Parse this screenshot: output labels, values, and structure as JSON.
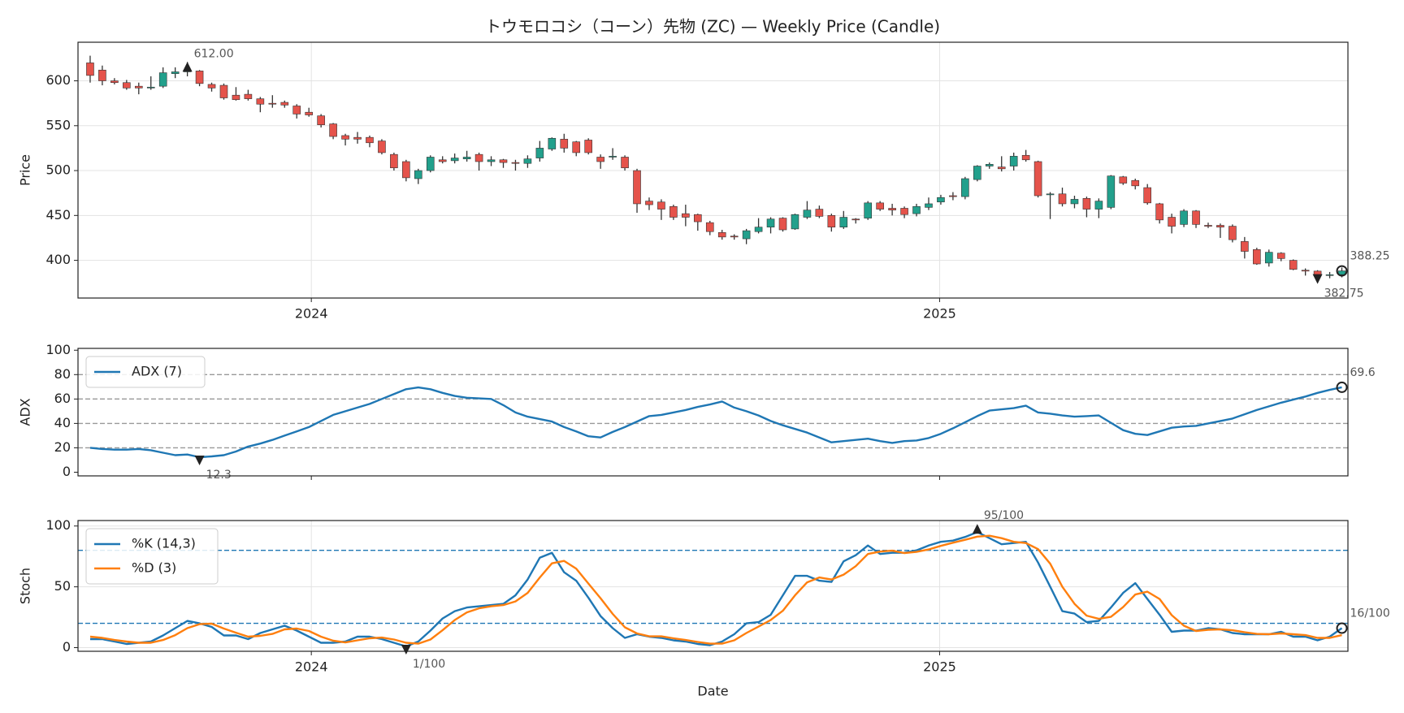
{
  "chart_data": [
    {
      "type": "candlestick",
      "title": "トウモロコシ（コーン）先物 (ZC) — Weekly Price (Candle)",
      "ylabel": "Price",
      "xlim": [
        -1,
        103.5
      ],
      "xticks": [
        {
          "value": 18.2,
          "label": "2024"
        },
        {
          "value": 69.9,
          "label": "2025"
        }
      ],
      "ylim": [
        358,
        643
      ],
      "yticks": [
        400,
        450,
        500,
        550,
        600
      ],
      "grid": true,
      "up_color": "#22a08c",
      "down_color": "#e5534b",
      "wick_color": "#333333",
      "open": [
        620,
        612,
        600,
        598,
        594,
        592,
        594,
        608,
        610,
        611,
        596,
        595,
        584,
        585,
        580,
        575,
        576,
        572,
        565,
        561,
        552,
        539,
        537,
        537,
        533,
        518,
        510,
        491,
        500,
        512,
        511,
        513,
        518,
        510,
        512,
        509,
        508,
        514,
        524,
        535,
        532,
        534,
        515,
        515,
        515,
        500,
        466,
        465,
        460,
        452,
        451,
        442,
        431,
        427,
        424,
        432,
        437,
        447,
        435,
        448,
        457,
        450,
        437,
        446,
        447,
        464,
        458,
        458,
        452,
        459,
        465,
        472,
        471,
        490,
        505,
        504,
        505,
        517,
        510,
        473,
        474,
        463,
        469,
        457,
        459,
        493,
        489,
        481,
        463,
        448,
        440,
        455,
        439,
        439,
        438,
        421,
        412,
        397,
        408,
        400,
        389,
        388,
        384,
        384
      ],
      "high": [
        628,
        617,
        603,
        601,
        598,
        605,
        615,
        615,
        621,
        612,
        598,
        597,
        593,
        590,
        582,
        584,
        578,
        574,
        570,
        563,
        553,
        541,
        543,
        539,
        535,
        520,
        512,
        502,
        517,
        516,
        519,
        522,
        520,
        516,
        513,
        512,
        517,
        533,
        537,
        541,
        533,
        536,
        518,
        525,
        517,
        502,
        470,
        468,
        462,
        462,
        452,
        444,
        434,
        429,
        435,
        447,
        448,
        448,
        452,
        466,
        461,
        452,
        455,
        447,
        466,
        466,
        463,
        460,
        463,
        470,
        473,
        476,
        493,
        506,
        509,
        516,
        520,
        523,
        511,
        476,
        481,
        472,
        471,
        469,
        495,
        494,
        491,
        485,
        464,
        452,
        457,
        456,
        442,
        441,
        440,
        426,
        414,
        412,
        409,
        401,
        391,
        389,
        387,
        392
      ],
      "low": [
        598,
        595,
        596,
        590,
        585,
        590,
        592,
        603,
        605,
        594,
        588,
        579,
        578,
        578,
        565,
        570,
        570,
        558,
        560,
        548,
        535,
        528,
        530,
        526,
        518,
        500,
        488,
        485,
        498,
        508,
        508,
        510,
        500,
        505,
        503,
        500,
        503,
        510,
        522,
        520,
        516,
        518,
        502,
        512,
        500,
        453,
        456,
        445,
        445,
        438,
        433,
        428,
        423,
        423,
        418,
        430,
        430,
        432,
        434,
        446,
        447,
        432,
        435,
        441,
        445,
        455,
        450,
        447,
        449,
        456,
        462,
        467,
        468,
        488,
        502,
        499,
        500,
        510,
        470,
        446,
        460,
        458,
        448,
        447,
        457,
        484,
        479,
        462,
        441,
        430,
        437,
        436,
        436,
        425,
        420,
        402,
        395,
        393,
        399,
        389,
        383,
        381,
        380,
        381
      ],
      "close": [
        606,
        600,
        598,
        592,
        592,
        593,
        609,
        610,
        612,
        597,
        592,
        581,
        579,
        580,
        574,
        574,
        573,
        563,
        562,
        551,
        538,
        535,
        535,
        531,
        520,
        503,
        492,
        500,
        515,
        510,
        514,
        515,
        510,
        512,
        509,
        508,
        513,
        525,
        536,
        525,
        520,
        520,
        510,
        516,
        503,
        463,
        462,
        457,
        448,
        448,
        443,
        432,
        426,
        426,
        433,
        437,
        446,
        434,
        451,
        456,
        449,
        437,
        448,
        445,
        464,
        457,
        456,
        451,
        460,
        463,
        470,
        471,
        491,
        505,
        507,
        502,
        516,
        512,
        472,
        474,
        463,
        468,
        457,
        466,
        494,
        486,
        483,
        464,
        445,
        438,
        455,
        440,
        438,
        437,
        423,
        410,
        396,
        409,
        402,
        390,
        388,
        382.75,
        384,
        388.25
      ],
      "close_labels": [
        null,
        null,
        null,
        null,
        null,
        null,
        null,
        null,
        "612.00",
        null,
        null,
        null,
        null,
        null,
        null,
        null,
        null,
        null,
        null,
        null,
        null,
        null,
        null,
        null,
        null,
        null,
        null,
        null,
        null,
        null,
        null,
        null,
        null,
        null,
        null,
        null,
        null,
        null,
        null,
        null,
        null,
        null,
        null,
        null,
        null,
        null,
        null,
        null,
        null,
        null,
        null,
        null,
        null,
        null,
        null,
        null,
        null,
        null,
        null,
        null,
        null,
        null,
        null,
        null,
        null,
        null,
        null,
        null,
        null,
        null,
        null,
        null,
        null,
        null,
        null,
        null,
        null,
        null,
        null,
        null,
        null,
        null,
        null,
        null,
        null,
        null,
        null,
        null,
        null,
        null,
        null,
        null,
        null,
        null,
        null,
        null,
        null,
        null,
        null,
        null,
        null,
        "382.75",
        null,
        "388.25"
      ]
    },
    {
      "type": "line",
      "ylabel": "ADX",
      "xlim": [
        -1,
        103.5
      ],
      "xticks": [
        18.2,
        69.9
      ],
      "ylim": [
        -3,
        101.5
      ],
      "yticks": [
        0,
        20,
        40,
        60,
        80,
        100
      ],
      "grid": false,
      "levels": [
        20,
        40,
        60,
        80
      ],
      "level_color": "#999999",
      "legend": "upper left",
      "series": [
        {
          "name": "ADX (7)",
          "color": "#1f77b4",
          "values": [
            20,
            19,
            18.5,
            18.5,
            19,
            18,
            16,
            14,
            14.5,
            12.3,
            13,
            14,
            17,
            21,
            23.5,
            26.5,
            30,
            33.5,
            37,
            42,
            47,
            50,
            53,
            56,
            60,
            64,
            68,
            69.5,
            68,
            65,
            62.5,
            61,
            60.5,
            60,
            55,
            49,
            45.5,
            43.5,
            41.5,
            37,
            33.5,
            29.5,
            28.5,
            33,
            37,
            41.5,
            46,
            47,
            49,
            51,
            53.5,
            55.5,
            58,
            53,
            50,
            46.5,
            42,
            38.5,
            35.5,
            32.5,
            28.5,
            24.5,
            25.5,
            26.5,
            27.5,
            25.5,
            24,
            25.5,
            26,
            28,
            31.5,
            36,
            41,
            46,
            50.5,
            51.5,
            52.5,
            54.5,
            49,
            48,
            46.5,
            45.5,
            46,
            46.5,
            40.5,
            34.5,
            31.5,
            30.5,
            33.5,
            36.5,
            37.5,
            38,
            40,
            42,
            44,
            47.5,
            51,
            54,
            57,
            59.5,
            62,
            65,
            67.5,
            69.6
          ],
          "value_labels": [
            null,
            null,
            null,
            null,
            null,
            null,
            null,
            null,
            null,
            "12.3",
            null,
            null,
            null,
            null,
            null,
            null,
            null,
            null,
            null,
            null,
            null,
            null,
            null,
            null,
            null,
            null,
            null,
            null,
            null,
            null,
            null,
            null,
            null,
            null,
            null,
            null,
            null,
            null,
            null,
            null,
            null,
            null,
            null,
            null,
            null,
            null,
            null,
            null,
            null,
            null,
            null,
            null,
            null,
            null,
            null,
            null,
            null,
            null,
            null,
            null,
            null,
            null,
            null,
            null,
            null,
            null,
            null,
            null,
            null,
            null,
            null,
            null,
            null,
            null,
            null,
            null,
            null,
            null,
            null,
            null,
            null,
            null,
            null,
            null,
            null,
            null,
            null,
            null,
            null,
            null,
            null,
            null,
            null,
            null,
            null,
            null,
            null,
            null,
            null,
            null,
            null,
            null,
            null,
            "69.6"
          ]
        }
      ]
    },
    {
      "type": "line",
      "ylabel": "Stoch",
      "xlabel": "Date",
      "xlim": [
        -1,
        103.5
      ],
      "xticks": [
        {
          "value": 18.2,
          "label": "2024"
        },
        {
          "value": 69.9,
          "label": "2025"
        }
      ],
      "ylim": [
        -3,
        104.5
      ],
      "yticks": [
        0,
        50,
        100
      ],
      "grid": true,
      "levels": [
        20,
        80
      ],
      "level_color": "#1f77b4",
      "legend": "upper left",
      "series": [
        {
          "name": "%K (14,3)",
          "color": "#1f77b4",
          "values": [
            7,
            7,
            5,
            3,
            4,
            5,
            10,
            16,
            22,
            20,
            17,
            10,
            10,
            7,
            12,
            15,
            18,
            14,
            9,
            4,
            4,
            5,
            9,
            9,
            7,
            4,
            1,
            5,
            14,
            24,
            30,
            33,
            34,
            35,
            36,
            43,
            56,
            74,
            78,
            62,
            55,
            41,
            26,
            16,
            8,
            11,
            9,
            8,
            6,
            5,
            3,
            2,
            5,
            11,
            20,
            21,
            27,
            43,
            59,
            59,
            55,
            54,
            71,
            76,
            84,
            77,
            78,
            78,
            80,
            84,
            87,
            88,
            91,
            95,
            90,
            85,
            86,
            87,
            70,
            50,
            30,
            28,
            21,
            22,
            33,
            45,
            53,
            40,
            27,
            13,
            14,
            14,
            16,
            15,
            12,
            11,
            11,
            11,
            13,
            9,
            9,
            6,
            9,
            16
          ],
          "value_labels": [
            null,
            null,
            null,
            null,
            null,
            null,
            null,
            null,
            null,
            null,
            null,
            null,
            null,
            null,
            null,
            null,
            null,
            null,
            null,
            null,
            null,
            null,
            null,
            null,
            null,
            null,
            "1/100",
            null,
            null,
            null,
            null,
            null,
            null,
            null,
            null,
            null,
            null,
            null,
            null,
            null,
            null,
            null,
            null,
            null,
            null,
            null,
            null,
            null,
            null,
            null,
            null,
            null,
            null,
            null,
            null,
            null,
            null,
            null,
            null,
            null,
            null,
            null,
            null,
            null,
            null,
            null,
            null,
            null,
            null,
            null,
            null,
            null,
            null,
            "95/100",
            null,
            null,
            null,
            null,
            null,
            null,
            null,
            null,
            null,
            null,
            null,
            null,
            null,
            null,
            null,
            null,
            null,
            null,
            null,
            null,
            null,
            null,
            null,
            null,
            null,
            null,
            null,
            null,
            null,
            "16/100"
          ]
        },
        {
          "name": "%D (3)",
          "color": "#ff7f0e",
          "values": [
            9,
            8,
            6.3,
            5,
            4,
            4,
            6.3,
            10.3,
            16,
            19.3,
            19.7,
            15.7,
            12.3,
            9,
            9.7,
            11.3,
            15,
            15.7,
            13.7,
            9,
            5.7,
            4.3,
            6,
            7.7,
            8.3,
            6.7,
            4,
            3.3,
            6.7,
            14.3,
            22.7,
            29,
            32.3,
            34,
            35,
            38,
            45,
            57.7,
            69.3,
            71.3,
            65,
            52.7,
            40.7,
            27.7,
            16.7,
            11.7,
            9.3,
            9.3,
            7.7,
            6.3,
            4.7,
            3.3,
            3.3,
            6,
            12,
            17.3,
            22.7,
            30.3,
            43,
            53.7,
            57.7,
            56,
            60,
            67,
            77,
            79,
            79.7,
            77.7,
            78.7,
            80.7,
            83.7,
            86.3,
            88.7,
            91.3,
            92,
            90,
            87,
            86,
            81,
            69,
            50,
            36,
            26.3,
            23.7,
            25.3,
            33.3,
            43.7,
            46,
            40,
            26.7,
            18,
            13.7,
            14.7,
            15,
            14.3,
            12.7,
            11.3,
            11,
            11.7,
            11,
            10.3,
            8,
            8,
            10.3
          ]
        }
      ]
    }
  ]
}
